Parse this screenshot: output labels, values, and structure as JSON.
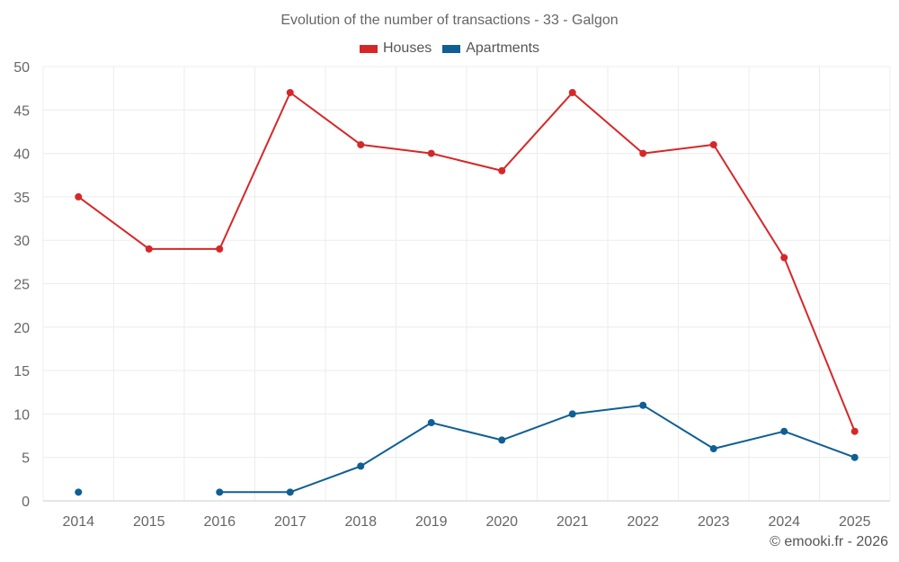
{
  "chart_data": {
    "type": "line",
    "title": "Evolution of the number of transactions - 33 - Galgon",
    "xlabel": "",
    "ylabel": "",
    "categories": [
      "2014",
      "2015",
      "2016",
      "2017",
      "2018",
      "2019",
      "2020",
      "2021",
      "2022",
      "2023",
      "2024",
      "2025"
    ],
    "ylim": [
      0,
      50
    ],
    "yticks": [
      "0",
      "5",
      "10",
      "15",
      "20",
      "25",
      "30",
      "35",
      "40",
      "45",
      "50"
    ],
    "grid": true,
    "legend_position": "top-center",
    "series": [
      {
        "name": "Houses",
        "color": "#d62728",
        "values": [
          35,
          29,
          29,
          47,
          41,
          40,
          38,
          47,
          40,
          41,
          28,
          8
        ]
      },
      {
        "name": "Apartments",
        "color": "#0f5f94",
        "values": [
          1,
          null,
          1,
          1,
          4,
          9,
          7,
          10,
          11,
          6,
          8,
          5
        ]
      }
    ]
  },
  "credit": "© emooki.fr - 2026"
}
